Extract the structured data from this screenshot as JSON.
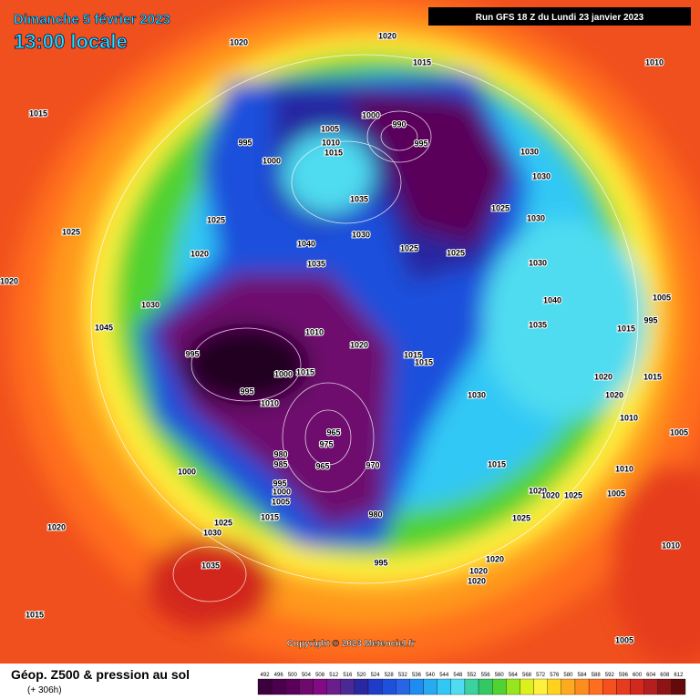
{
  "header": {
    "date": "Dimanche 5 février 2023",
    "time": "13:00 locale",
    "run": "Run GFS 18 Z du Lundi 23 janvier 2023"
  },
  "footer": {
    "title": "Géop. Z500 & pression au sol",
    "subtitle": "(+ 306h)",
    "copyright": "Copyright © 2023 Meteociel.fr"
  },
  "legend": {
    "values": [
      492,
      496,
      500,
      504,
      508,
      512,
      516,
      520,
      524,
      528,
      532,
      536,
      540,
      544,
      548,
      552,
      556,
      560,
      564,
      568,
      572,
      576,
      580,
      584,
      588,
      592,
      596,
      600,
      604,
      608,
      612
    ],
    "colors": [
      "#3c003c",
      "#4b004b",
      "#5a005a",
      "#6e0a6e",
      "#820a82",
      "#6a1e8c",
      "#4b2896",
      "#2828a0",
      "#1e3cc8",
      "#1e50dc",
      "#2864e6",
      "#1e8cf0",
      "#28aaf0",
      "#32c8f5",
      "#50dcf0",
      "#3cd2a0",
      "#32c864",
      "#50d232",
      "#96e61e",
      "#dcf01e",
      "#fff03c",
      "#ffd21e",
      "#ffaa1e",
      "#ff8c1e",
      "#ff6e1e",
      "#f5501e",
      "#e63c1e",
      "#d2281e",
      "#b41e1e",
      "#8c1414",
      "#640a0a"
    ]
  },
  "isobars": [
    "1020",
    "1020",
    "1015",
    "1010",
    "1015",
    "1000",
    "990",
    "1005",
    "995",
    "1010",
    "995",
    "1000",
    "1015",
    "1030",
    "1030",
    "1035",
    "1025",
    "1025",
    "1030",
    "1025",
    "1040",
    "1030",
    "1025",
    "1025",
    "1020",
    "1035",
    "1030",
    "1020",
    "1005",
    "1040",
    "1030",
    "995",
    "1010",
    "1045",
    "1035",
    "1015",
    "1020",
    "995",
    "1015",
    "1015",
    "1015",
    "1000",
    "1020",
    "1015",
    "995",
    "1030",
    "1010",
    "1020",
    "965",
    "1010",
    "1005",
    "975",
    "980",
    "970",
    "965",
    "1015",
    "1010",
    "1000",
    "985",
    "995",
    "1000",
    "1005",
    "1020",
    "1020",
    "1025",
    "1005",
    "980",
    "1015",
    "1025",
    "1025",
    "1020",
    "1030",
    "1020",
    "995",
    "1035",
    "1020",
    "1010",
    "1020",
    "1015",
    "1005"
  ]
}
